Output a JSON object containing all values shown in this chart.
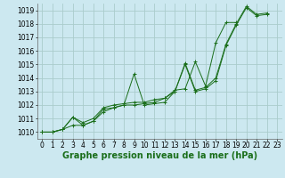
{
  "title": "Graphe pression niveau de la mer (hPa)",
  "bg_color": "#cce8f0",
  "grid_color": "#aacccc",
  "line_color": "#1a6e1a",
  "marker_color": "#1a6e1a",
  "xlim": [
    -0.5,
    23.5
  ],
  "ylim": [
    1009.5,
    1019.5
  ],
  "xticks": [
    0,
    1,
    2,
    3,
    4,
    5,
    6,
    7,
    8,
    9,
    10,
    11,
    12,
    13,
    14,
    15,
    16,
    17,
    18,
    19,
    20,
    21,
    22,
    23
  ],
  "yticks": [
    1010,
    1011,
    1012,
    1013,
    1014,
    1015,
    1016,
    1017,
    1018,
    1019
  ],
  "series": [
    [
      1010.0,
      1010.0,
      1010.2,
      1011.1,
      1010.5,
      1010.8,
      1011.7,
      1011.8,
      1012.0,
      1014.3,
      1012.0,
      1012.1,
      1012.2,
      1013.0,
      1015.1,
      1013.1,
      1013.3,
      1014.0,
      1016.5,
      1018.0,
      1019.3,
      1018.7,
      1018.8,
      null
    ],
    [
      1010.0,
      1010.0,
      1010.2,
      1010.5,
      1010.5,
      1010.8,
      1011.5,
      1011.8,
      1012.0,
      1012.0,
      1012.1,
      1012.2,
      1012.5,
      1013.0,
      1015.0,
      1013.0,
      1013.2,
      1013.8,
      1016.4,
      1017.9,
      1019.2,
      1018.6,
      1018.7,
      null
    ],
    [
      1010.0,
      1010.0,
      1010.2,
      1011.1,
      1010.7,
      1011.0,
      1011.8,
      1012.0,
      1012.1,
      1012.2,
      1012.2,
      1012.4,
      1012.5,
      1013.1,
      1013.2,
      1015.2,
      1013.4,
      1016.6,
      1018.1,
      1018.1,
      null,
      null,
      null,
      null
    ]
  ],
  "title_fontsize": 7,
  "tick_fontsize": 5.5,
  "figwidth": 3.2,
  "figheight": 2.0,
  "dpi": 100
}
